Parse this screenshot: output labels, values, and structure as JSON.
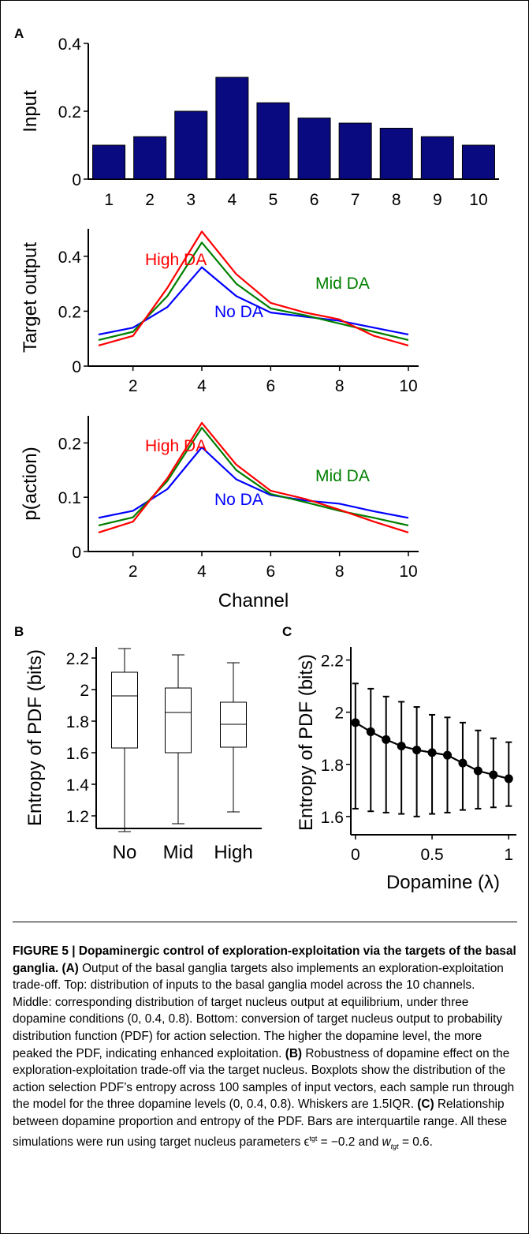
{
  "chart_data": [
    {
      "panel": "A",
      "type": "bar",
      "ylabel": "Input",
      "categories": [
        "1",
        "2",
        "3",
        "4",
        "5",
        "6",
        "7",
        "8",
        "9",
        "10"
      ],
      "values": [
        0.1,
        0.125,
        0.2,
        0.3,
        0.225,
        0.18,
        0.165,
        0.15,
        0.125,
        0.1
      ],
      "ylim": [
        0,
        0.4
      ],
      "yticks": [
        "0",
        "0.2",
        "0.4"
      ],
      "color": "#0a0a80"
    },
    {
      "type": "line",
      "xlabel": "",
      "ylabel": "Target output",
      "x": [
        1,
        2,
        3,
        4,
        5,
        6,
        7,
        8,
        9,
        10
      ],
      "xticks": [
        "2",
        "4",
        "6",
        "8",
        "10"
      ],
      "yticks": [
        "0",
        "0.2",
        "0.4"
      ],
      "ylim": [
        0,
        0.5
      ],
      "series": [
        {
          "name": "No DA",
          "color": "#0000ff",
          "values": [
            0.115,
            0.14,
            0.215,
            0.36,
            0.255,
            0.195,
            0.18,
            0.165,
            0.14,
            0.115
          ]
        },
        {
          "name": "Mid DA",
          "color": "#007f00",
          "values": [
            0.095,
            0.125,
            0.255,
            0.45,
            0.3,
            0.21,
            0.185,
            0.155,
            0.125,
            0.095
          ]
        },
        {
          "name": "High DA",
          "color": "#ff0000",
          "values": [
            0.075,
            0.11,
            0.285,
            0.49,
            0.335,
            0.23,
            0.195,
            0.17,
            0.11,
            0.075
          ]
        }
      ]
    },
    {
      "type": "line",
      "xlabel": "Channel",
      "ylabel": "p(action)",
      "x": [
        1,
        2,
        3,
        4,
        5,
        6,
        7,
        8,
        9,
        10
      ],
      "xticks": [
        "2",
        "4",
        "6",
        "8",
        "10"
      ],
      "yticks": [
        "0",
        "0.1",
        "0.2"
      ],
      "ylim": [
        0,
        0.25
      ],
      "series": [
        {
          "name": "No DA",
          "color": "#0000ff",
          "values": [
            0.062,
            0.075,
            0.115,
            0.192,
            0.133,
            0.104,
            0.094,
            0.088,
            0.074,
            0.062
          ]
        },
        {
          "name": "Mid DA",
          "color": "#007f00",
          "values": [
            0.048,
            0.063,
            0.13,
            0.228,
            0.15,
            0.106,
            0.091,
            0.075,
            0.062,
            0.048
          ]
        },
        {
          "name": "High DA",
          "color": "#ff0000",
          "values": [
            0.035,
            0.055,
            0.135,
            0.237,
            0.16,
            0.112,
            0.097,
            0.077,
            0.055,
            0.035
          ]
        }
      ]
    },
    {
      "panel": "B",
      "type": "boxplot",
      "ylabel": "Entropy of PDF (bits)",
      "categories": [
        "No",
        "Mid",
        "High"
      ],
      "yticks": [
        "1.2",
        "1.4",
        "1.6",
        "1.8",
        "2",
        "2.2"
      ],
      "ylim": [
        1.12,
        2.27
      ],
      "boxes": [
        {
          "min": 1.1,
          "q1": 1.63,
          "median": 1.96,
          "q3": 2.11,
          "max": 2.26
        },
        {
          "min": 1.15,
          "q1": 1.6,
          "median": 1.855,
          "q3": 2.01,
          "max": 2.22
        },
        {
          "min": 1.225,
          "q1": 1.635,
          "median": 1.78,
          "q3": 1.92,
          "max": 2.17
        }
      ]
    },
    {
      "panel": "C",
      "type": "line",
      "xlabel": "Dopamine (λ)",
      "ylabel": "Entropy of PDF (bits)",
      "xticks": [
        "0",
        "0.5",
        "1"
      ],
      "yticks": [
        "1.6",
        "1.8",
        "2",
        "2.2"
      ],
      "xlim": [
        -0.03,
        1.05
      ],
      "ylim": [
        1.53,
        2.25
      ],
      "x": [
        0,
        0.1,
        0.2,
        0.3,
        0.4,
        0.5,
        0.6,
        0.7,
        0.8,
        0.9,
        1.0
      ],
      "values": [
        1.96,
        1.925,
        1.895,
        1.87,
        1.855,
        1.845,
        1.835,
        1.805,
        1.775,
        1.76,
        1.745
      ],
      "error_low": [
        1.63,
        1.62,
        1.615,
        1.61,
        1.6,
        1.61,
        1.615,
        1.625,
        1.63,
        1.635,
        1.64
      ],
      "error_high": [
        2.11,
        2.09,
        2.06,
        2.04,
        2.02,
        1.99,
        1.98,
        1.96,
        1.93,
        1.9,
        1.885
      ]
    }
  ],
  "panel_labels": {
    "a": "A",
    "b": "B",
    "c": "C"
  },
  "caption": {
    "figure": "FIGURE 5 | Dopaminergic control of exploration-exploitation via the targets of the basal ganglia.",
    "a_label": "(A)",
    "a_text": " Output of the basal ganglia targets also implements an exploration-exploitation trade-off. Top: distribution of inputs to the basal ganglia model across the 10 channels. Middle: corresponding distribution of target nucleus output at equilibrium, under three dopamine conditions (0, 0.4, 0.8). Bottom: conversion of target nucleus output to probability distribution function (PDF) for action selection. The higher the dopamine level, the more peaked the PDF, indicating enhanced exploitation. ",
    "b_label": "(B)",
    "b_text": " Robustness of dopamine effect on the exploration-exploitation trade-off via the target nucleus. Boxplots show the distribution of the action selection PDF’s entropy across 100 samples of input vectors, each sample run through the model for the three dopamine levels (0, 0.4, 0.8). Whiskers are 1.5IQR. ",
    "c_label": "(C)",
    "c_text": " Relationship between dopamine proportion and entropy of the PDF. Bars are interquartile range. All these simulations were run using target nucleus parameters ϵ",
    "eps_sup": "tgt",
    "eq1": " = −0.2 and ",
    "w_sym": "w",
    "w_sub": "tgt",
    "eq2": " = 0.6."
  }
}
